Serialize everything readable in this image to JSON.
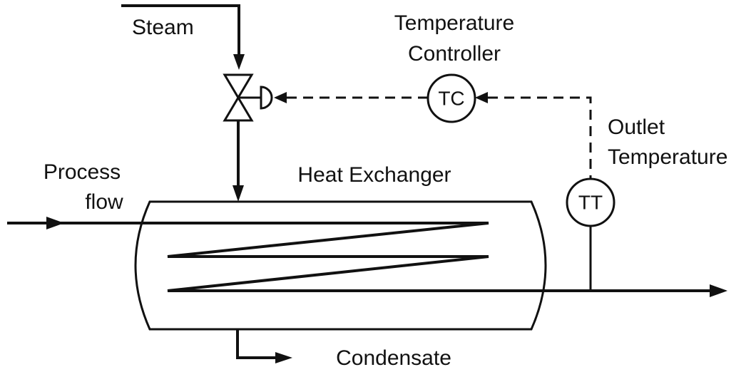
{
  "labels": {
    "steam": "Steam",
    "temperature_controller": [
      "Temperature",
      "Controller"
    ],
    "outlet_temperature": [
      "Outlet",
      "Temperature"
    ],
    "process_flow": [
      "Process",
      "flow"
    ],
    "heat_exchanger": "Heat Exchanger",
    "condensate": "Condensate"
  },
  "instruments": [
    {
      "tag": "TC"
    },
    {
      "tag": "TT"
    }
  ]
}
